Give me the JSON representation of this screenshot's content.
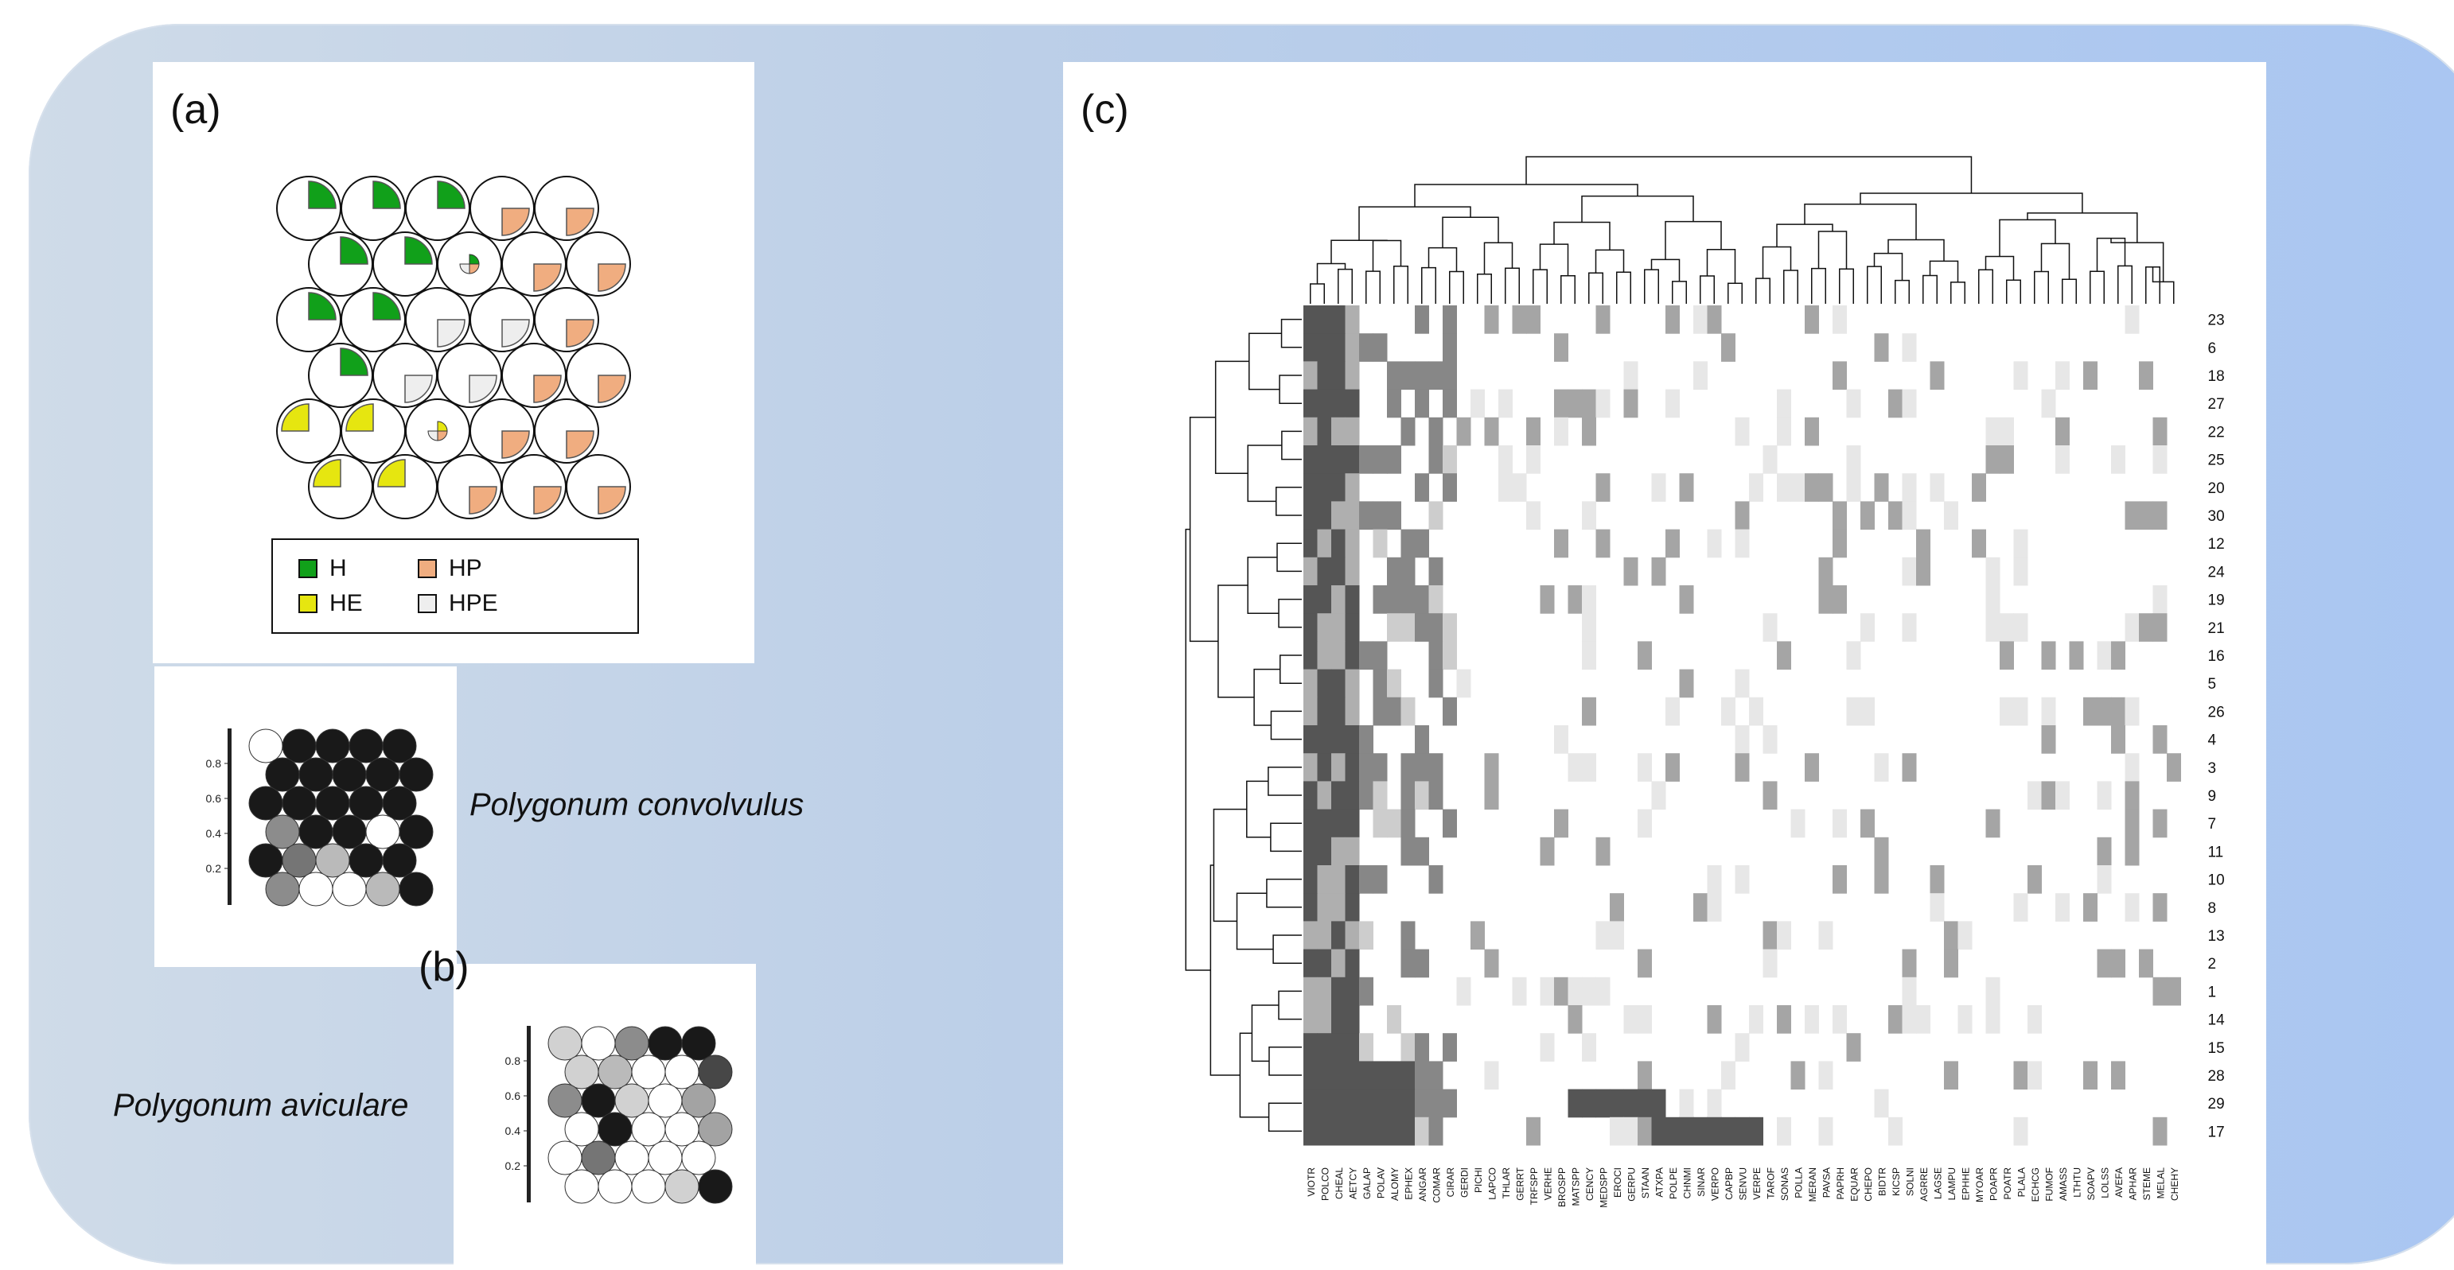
{
  "panels": {
    "a": {
      "label": "(a)",
      "legend": [
        {
          "code": "H",
          "color": "#11a01a"
        },
        {
          "code": "HP",
          "color": "#f0ad80"
        },
        {
          "code": "HE",
          "color": "#e6e610"
        },
        {
          "code": "HPE",
          "color": "#eeeeee"
        }
      ],
      "grid": [
        [
          "H",
          "H",
          "H",
          "HP",
          "HP"
        ],
        [
          "H",
          "H",
          "HPE-mix",
          "HP",
          "HP"
        ],
        [
          "H",
          "H",
          "HPE",
          "HPE",
          "HP"
        ],
        [
          "H",
          "HPE",
          "HPE",
          "HP",
          "HP"
        ],
        [
          "HE",
          "HE",
          "HE-mix",
          "HP",
          "HP"
        ],
        [
          "HE",
          "HE",
          "HP",
          "HP",
          "HP"
        ]
      ]
    },
    "b": {
      "label": "(b)",
      "species_top": "Polygonum convolvulus",
      "species_bottom": "Polygonum aviculare",
      "scale_ticks": [
        "0.8",
        "0.6",
        "0.4",
        "0.2"
      ],
      "map_top": [
        [
          0,
          1,
          1,
          1,
          1
        ],
        [
          1,
          1,
          1,
          1,
          1
        ],
        [
          1,
          1,
          1,
          1,
          1
        ],
        [
          0.5,
          1,
          1,
          0,
          1
        ],
        [
          1,
          0.6,
          0.3,
          1,
          1
        ],
        [
          0.5,
          0,
          0,
          0.3,
          1
        ]
      ],
      "map_bottom": [
        [
          0.2,
          0,
          0.5,
          1,
          1
        ],
        [
          0.2,
          0.3,
          0,
          0,
          0.8
        ],
        [
          0.5,
          1,
          0.2,
          0,
          0.4
        ],
        [
          0,
          1,
          0,
          0,
          0.4
        ],
        [
          0,
          0.6,
          0,
          0,
          0
        ],
        [
          0,
          0,
          0,
          0.2,
          1
        ]
      ]
    },
    "c": {
      "label": "(c)",
      "row_labels": [
        "23",
        "6",
        "18",
        "27",
        "22",
        "25",
        "20",
        "30",
        "12",
        "24",
        "19",
        "21",
        "16",
        "5",
        "26",
        "4",
        "3",
        "9",
        "7",
        "11",
        "10",
        "8",
        "13",
        "2",
        "1",
        "14",
        "15",
        "28",
        "29",
        "17"
      ],
      "col_labels": [
        "VIOTR",
        "POLCO",
        "CHEAL",
        "AETCY",
        "GALAP",
        "POLAV",
        "ALOMY",
        "EPHEX",
        "ANGAR",
        "COMAR",
        "CIRAR",
        "GERDI",
        "PICHI",
        "LAPCO",
        "THLAR",
        "GERRT",
        "TRFSPP",
        "VERHE",
        "BROSPP",
        "MATSPP",
        "CENCY",
        "MEDSPP",
        "EROCI",
        "GERPU",
        "STAAN",
        "ATXPA",
        "POLPE",
        "CHNMI",
        "SINAR",
        "VERPO",
        "CAPBP",
        "SENVU",
        "VERPE",
        "TAROF",
        "SONAS",
        "POLLA",
        "MERAN",
        "PAVSA",
        "PAPRH",
        "EQUAR",
        "CHEPO",
        "BIDTR",
        "KICSP",
        "SOLNI",
        "AGRRE",
        "LAGSE",
        "LAMPU",
        "EPHHE",
        "MYOAR",
        "POAPR",
        "POATR",
        "PLALA",
        "ECHCG",
        "FUMOF",
        "AMASS",
        "LTHTU",
        "SOAPV",
        "LOLSS",
        "AVEFA",
        "APHAR",
        "STEME",
        "MELAL",
        "CHEHY"
      ]
    }
  }
}
